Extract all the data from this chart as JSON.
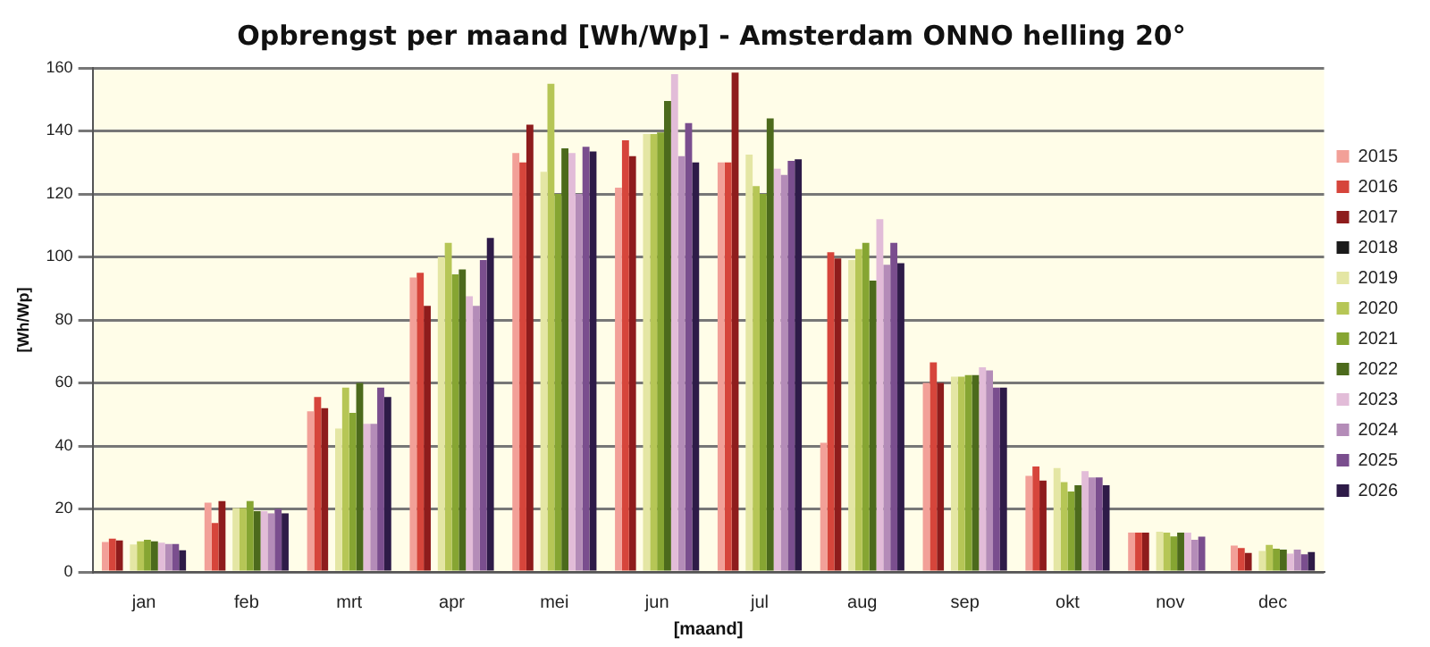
{
  "chart_data": {
    "type": "bar",
    "title": "Opbrengst per maand [Wh/Wp] - Amsterdam ONNO helling 20°",
    "xlabel": "[maand]",
    "ylabel": "[Wh/Wp]",
    "categories": [
      "jan",
      "feb",
      "mrt",
      "apr",
      "mei",
      "jun",
      "jul",
      "aug",
      "sep",
      "okt",
      "nov",
      "dec"
    ],
    "series": [
      {
        "name": "2015",
        "color": "#f2a098",
        "values": [
          9.5,
          22,
          51,
          93.5,
          133,
          122,
          130,
          41,
          60,
          30.5,
          12.5,
          8.4
        ]
      },
      {
        "name": "2016",
        "color": "#d6453b",
        "values": [
          10.6,
          15.5,
          55.5,
          95,
          130,
          137,
          130,
          101.5,
          66.5,
          33.5,
          12.5,
          7.6
        ]
      },
      {
        "name": "2017",
        "color": "#8e1c1c",
        "values": [
          10,
          22.5,
          52,
          84.5,
          142,
          132,
          158.5,
          99.5,
          60,
          29,
          12.5,
          6
        ]
      },
      {
        "name": "2018",
        "color": "#1a1a1a",
        "values": [
          null,
          null,
          null,
          null,
          null,
          null,
          null,
          null,
          null,
          null,
          null,
          null
        ]
      },
      {
        "name": "2019",
        "color": "#e4e6a4",
        "values": [
          8.7,
          20.3,
          45.5,
          100,
          127,
          139,
          132.5,
          99,
          62,
          33,
          12.8,
          6.7
        ]
      },
      {
        "name": "2020",
        "color": "#b6c656",
        "values": [
          9.7,
          20.3,
          58.5,
          104.5,
          155,
          139,
          122.5,
          102.5,
          62,
          28.5,
          12.5,
          8.6
        ]
      },
      {
        "name": "2021",
        "color": "#86a532",
        "values": [
          10.2,
          22.5,
          50.5,
          94.5,
          120,
          139.5,
          120,
          104.5,
          62.5,
          25.5,
          11.3,
          7.4
        ]
      },
      {
        "name": "2022",
        "color": "#4c6a1c",
        "values": [
          9.7,
          19.3,
          60,
          96,
          134.5,
          149.5,
          144,
          92.5,
          62.5,
          27.5,
          12.5,
          7.1
        ]
      },
      {
        "name": "2023",
        "color": "#e2bcd8",
        "values": [
          9.3,
          19.3,
          47,
          87.5,
          133,
          158,
          128,
          112,
          65,
          32,
          12.5,
          5.8
        ]
      },
      {
        "name": "2024",
        "color": "#b48cb8",
        "values": [
          8.9,
          18.6,
          47,
          84.5,
          120,
          132,
          126,
          97.5,
          64,
          30,
          10.2,
          7.1
        ]
      },
      {
        "name": "2025",
        "color": "#7a4e8e",
        "values": [
          8.9,
          20,
          58.5,
          99,
          135,
          142.5,
          130.5,
          104.5,
          58.5,
          30,
          11.2,
          5.6
        ]
      },
      {
        "name": "2026",
        "color": "#2e1b48",
        "values": [
          6.9,
          18.6,
          55.5,
          106,
          133.5,
          130,
          131,
          98,
          58.5,
          27.5,
          null,
          6.3
        ]
      }
    ],
    "ylim": [
      0,
      160
    ],
    "yticks": [
      0,
      20,
      40,
      60,
      80,
      100,
      120,
      140,
      160
    ],
    "grid": "y",
    "legend": "right"
  }
}
